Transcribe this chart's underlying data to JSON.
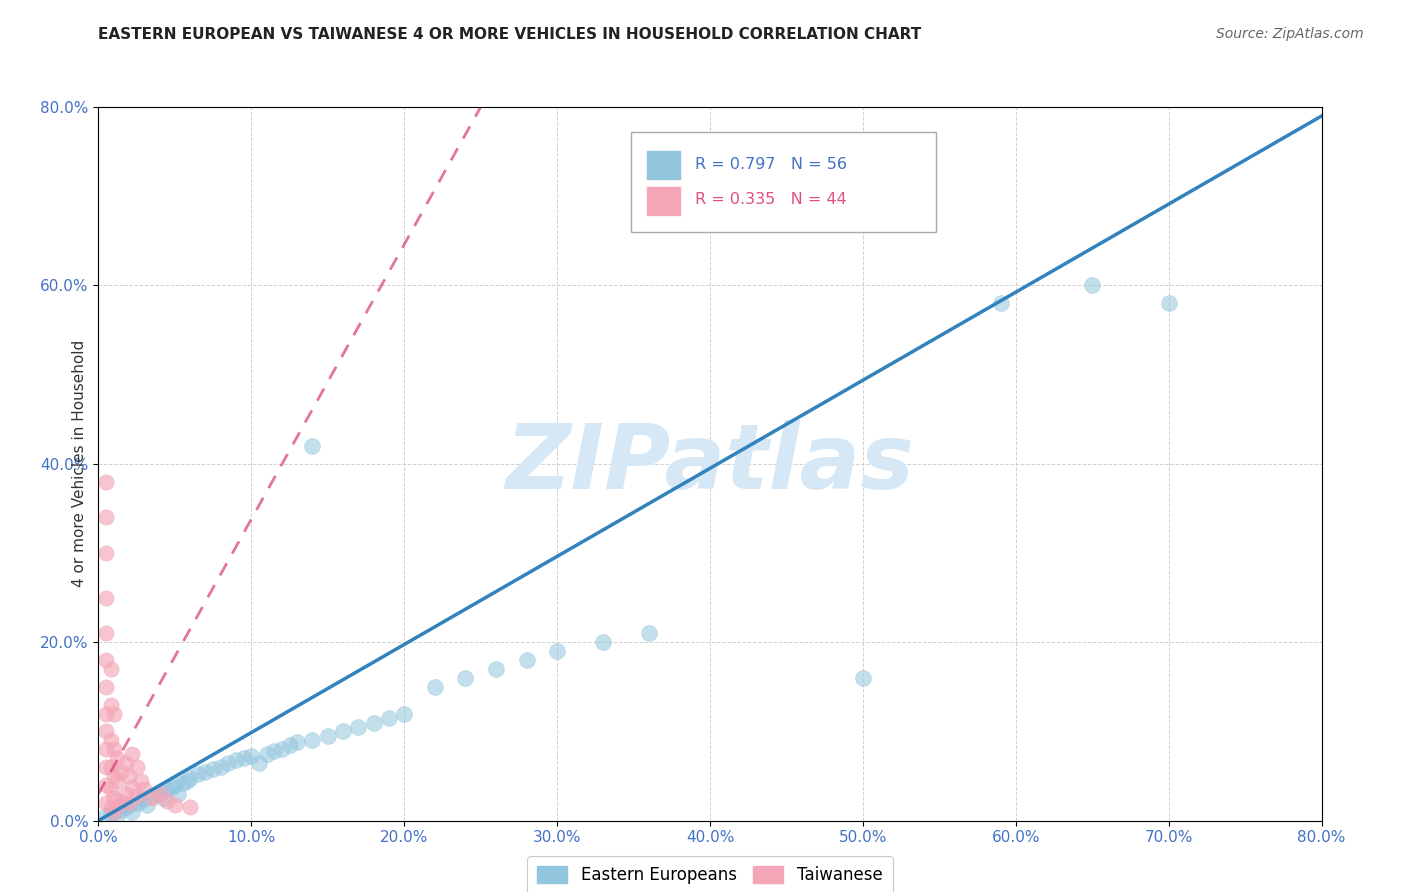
{
  "title": "EASTERN EUROPEAN VS TAIWANESE 4 OR MORE VEHICLES IN HOUSEHOLD CORRELATION CHART",
  "source": "Source: ZipAtlas.com",
  "ylabel": "4 or more Vehicles in Household",
  "xlim": [
    0.0,
    0.8
  ],
  "ylim": [
    0.0,
    0.8
  ],
  "blue_R": 0.797,
  "blue_N": 56,
  "pink_R": 0.335,
  "pink_N": 44,
  "blue_color": "#92c5de",
  "blue_line_color": "#3182bd",
  "pink_color": "#f4a6b8",
  "pink_line_color": "#d63b6e",
  "watermark": "ZIPatlas",
  "watermark_color": "#d6e8f5",
  "blue_label": "Eastern Europeans",
  "pink_label": "Taiwanese",
  "blue_scatter": [
    [
      0.005,
      0.005
    ],
    [
      0.008,
      0.008
    ],
    [
      0.01,
      0.01
    ],
    [
      0.012,
      0.005
    ],
    [
      0.015,
      0.012
    ],
    [
      0.018,
      0.015
    ],
    [
      0.02,
      0.018
    ],
    [
      0.022,
      0.01
    ],
    [
      0.025,
      0.02
    ],
    [
      0.028,
      0.022
    ],
    [
      0.03,
      0.025
    ],
    [
      0.032,
      0.018
    ],
    [
      0.035,
      0.028
    ],
    [
      0.038,
      0.03
    ],
    [
      0.04,
      0.032
    ],
    [
      0.042,
      0.025
    ],
    [
      0.045,
      0.035
    ],
    [
      0.048,
      0.038
    ],
    [
      0.05,
      0.04
    ],
    [
      0.052,
      0.03
    ],
    [
      0.055,
      0.042
    ],
    [
      0.058,
      0.045
    ],
    [
      0.06,
      0.048
    ],
    [
      0.065,
      0.052
    ],
    [
      0.07,
      0.055
    ],
    [
      0.075,
      0.058
    ],
    [
      0.08,
      0.06
    ],
    [
      0.085,
      0.065
    ],
    [
      0.09,
      0.068
    ],
    [
      0.095,
      0.07
    ],
    [
      0.1,
      0.072
    ],
    [
      0.105,
      0.065
    ],
    [
      0.11,
      0.075
    ],
    [
      0.115,
      0.078
    ],
    [
      0.12,
      0.08
    ],
    [
      0.125,
      0.085
    ],
    [
      0.13,
      0.088
    ],
    [
      0.14,
      0.09
    ],
    [
      0.15,
      0.095
    ],
    [
      0.16,
      0.1
    ],
    [
      0.17,
      0.105
    ],
    [
      0.18,
      0.11
    ],
    [
      0.19,
      0.115
    ],
    [
      0.2,
      0.12
    ],
    [
      0.14,
      0.42
    ],
    [
      0.22,
      0.15
    ],
    [
      0.24,
      0.16
    ],
    [
      0.26,
      0.17
    ],
    [
      0.28,
      0.18
    ],
    [
      0.3,
      0.19
    ],
    [
      0.33,
      0.2
    ],
    [
      0.36,
      0.21
    ],
    [
      0.5,
      0.16
    ],
    [
      0.59,
      0.58
    ],
    [
      0.65,
      0.6
    ],
    [
      0.7,
      0.58
    ]
  ],
  "pink_scatter": [
    [
      0.005,
      0.02
    ],
    [
      0.005,
      0.04
    ],
    [
      0.005,
      0.06
    ],
    [
      0.005,
      0.08
    ],
    [
      0.005,
      0.1
    ],
    [
      0.005,
      0.12
    ],
    [
      0.005,
      0.15
    ],
    [
      0.005,
      0.18
    ],
    [
      0.005,
      0.21
    ],
    [
      0.005,
      0.25
    ],
    [
      0.008,
      0.015
    ],
    [
      0.008,
      0.035
    ],
    [
      0.008,
      0.06
    ],
    [
      0.008,
      0.09
    ],
    [
      0.008,
      0.13
    ],
    [
      0.008,
      0.17
    ],
    [
      0.01,
      0.01
    ],
    [
      0.01,
      0.025
    ],
    [
      0.01,
      0.05
    ],
    [
      0.01,
      0.08
    ],
    [
      0.012,
      0.018
    ],
    [
      0.012,
      0.045
    ],
    [
      0.012,
      0.07
    ],
    [
      0.015,
      0.022
    ],
    [
      0.015,
      0.055
    ],
    [
      0.018,
      0.03
    ],
    [
      0.018,
      0.065
    ],
    [
      0.02,
      0.02
    ],
    [
      0.02,
      0.05
    ],
    [
      0.022,
      0.038
    ],
    [
      0.022,
      0.075
    ],
    [
      0.025,
      0.028
    ],
    [
      0.025,
      0.06
    ],
    [
      0.028,
      0.045
    ],
    [
      0.03,
      0.035
    ],
    [
      0.035,
      0.025
    ],
    [
      0.04,
      0.03
    ],
    [
      0.045,
      0.022
    ],
    [
      0.05,
      0.018
    ],
    [
      0.06,
      0.015
    ],
    [
      0.005,
      0.3
    ],
    [
      0.005,
      0.34
    ],
    [
      0.005,
      0.38
    ],
    [
      0.01,
      0.12
    ]
  ],
  "grid_color": "#cccccc",
  "background_color": "#ffffff",
  "tick_color": "#4472c4",
  "tick_fontsize": 11,
  "title_fontsize": 11,
  "source_fontsize": 10,
  "ylabel_fontsize": 11
}
